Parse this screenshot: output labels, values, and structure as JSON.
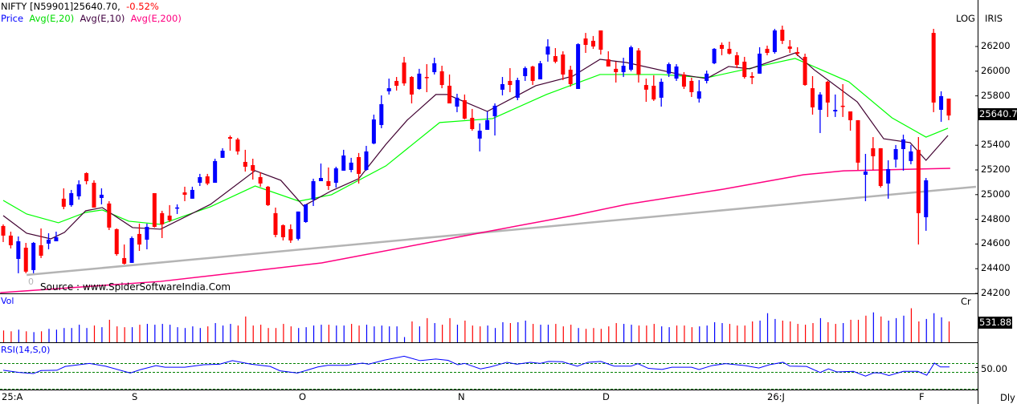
{
  "header": {
    "symbol": "NIFTY [N59901]25640.70,",
    "change": "-0.52%",
    "legend": {
      "price": "Price",
      "ema20": "Avg(E,20)",
      "ema10": "Avg(E,10)",
      "ema200": "Avg(E,200)"
    }
  },
  "top_right": {
    "log": "LOG",
    "iris": "IRIS"
  },
  "source": "Source : www.SpiderSoftwareIndia.Com",
  "trendline_label": "0",
  "colors": {
    "up": "#0000ff",
    "down": "#ff0000",
    "ema20": "#00ff00",
    "ema10": "#400030",
    "ema200": "#ff0080",
    "trendline": "#b4b4b4",
    "rsi": "#0000ff",
    "rsi_levels": "#008000"
  },
  "price_axis": {
    "ticks": [
      26200,
      26000,
      25800,
      25400,
      25200,
      25000,
      24800,
      24600,
      24400,
      24200
    ],
    "last_price_label": "25640.7",
    "range": [
      24200,
      26200
    ],
    "scale": "log"
  },
  "volume": {
    "label": "Vol",
    "unit": "Cr",
    "last_label": "531.88"
  },
  "rsi": {
    "label": "RSI(14,S,0)",
    "mid_label": "50.00"
  },
  "x_axis": {
    "labels": [
      "25:A",
      "S",
      "O",
      "N",
      "D",
      "26:J",
      "F"
    ],
    "period": "Dly"
  },
  "chart_data": {
    "type": "candlestick",
    "ohlc_fields": [
      "open",
      "high",
      "low",
      "close"
    ],
    "ohlc": [
      [
        24746,
        24759,
        24616,
        24668
      ],
      [
        24668,
        24700,
        24564,
        24590
      ],
      [
        24479,
        24661,
        24363,
        24622
      ],
      [
        24570,
        24609,
        24363,
        24376
      ],
      [
        24389,
        24616,
        24363,
        24609
      ],
      [
        24590,
        24726,
        24486,
        24505
      ],
      [
        24603,
        24687,
        24557,
        24635
      ],
      [
        24622,
        24700,
        24622,
        24655
      ],
      [
        24967,
        25051,
        24882,
        24902
      ],
      [
        24915,
        25038,
        24902,
        25012
      ],
      [
        24986,
        25116,
        24960,
        25083
      ],
      [
        25174,
        25181,
        25083,
        25109
      ],
      [
        25096,
        25116,
        24895,
        24895
      ],
      [
        24973,
        25051,
        24921,
        24999
      ],
      [
        24928,
        24947,
        24713,
        24733
      ],
      [
        24720,
        24726,
        24505,
        24518
      ],
      [
        24486,
        24596,
        24434,
        24440
      ],
      [
        24447,
        24661,
        24447,
        24648
      ],
      [
        24681,
        24765,
        24544,
        24596
      ],
      [
        24635,
        24765,
        24557,
        24739
      ],
      [
        25012,
        25012,
        24733,
        24739
      ],
      [
        24850,
        24869,
        24648,
        24759
      ],
      [
        24830,
        24915,
        24778,
        24791
      ],
      [
        24894,
        24921,
        24843,
        24896
      ],
      [
        25018,
        25064,
        24947,
        24999
      ],
      [
        24967,
        25064,
        24967,
        25038
      ],
      [
        25096,
        25168,
        25070,
        25142
      ],
      [
        25148,
        25168,
        25077,
        25090
      ],
      [
        25096,
        25291,
        25096,
        25272
      ],
      [
        25298,
        25376,
        25298,
        25356
      ],
      [
        25466,
        25479,
        25356,
        25453
      ],
      [
        25447,
        25460,
        25324,
        25350
      ],
      [
        25265,
        25363,
        25187,
        25226
      ],
      [
        25239,
        25291,
        25122,
        25194
      ],
      [
        25142,
        25181,
        25064,
        25090
      ],
      [
        25064,
        25070,
        24908,
        24915
      ],
      [
        24850,
        24895,
        24655,
        24674
      ],
      [
        24752,
        24759,
        24629,
        24655
      ],
      [
        24720,
        24759,
        24609,
        24629
      ],
      [
        24642,
        24863,
        24629,
        24863
      ],
      [
        24778,
        24921,
        24772,
        24921
      ],
      [
        24960,
        25129,
        24908,
        25109
      ],
      [
        25109,
        25252,
        25109,
        25135
      ],
      [
        25109,
        25220,
        25038,
        25070
      ],
      [
        25096,
        25226,
        25057,
        25213
      ],
      [
        25194,
        25363,
        25194,
        25317
      ],
      [
        25200,
        25298,
        25181,
        25259
      ],
      [
        25304,
        25337,
        25090,
        25168
      ],
      [
        25200,
        25395,
        25194,
        25350
      ],
      [
        25414,
        25648,
        25408,
        25609
      ],
      [
        25564,
        25804,
        25538,
        25733
      ],
      [
        25837,
        25940,
        25811,
        25862
      ],
      [
        25921,
        25953,
        25843,
        25882
      ],
      [
        26070,
        26116,
        25882,
        25901
      ],
      [
        25953,
        25960,
        25739,
        25811
      ],
      [
        25856,
        26019,
        25850,
        25980
      ],
      [
        25953,
        26057,
        25830,
        25947
      ],
      [
        25992,
        26109,
        25973,
        26064
      ],
      [
        25999,
        26044,
        25862,
        25888
      ],
      [
        25882,
        25973,
        25739,
        25739
      ],
      [
        25713,
        25817,
        25668,
        25785
      ],
      [
        25765,
        25811,
        25609,
        25616
      ],
      [
        25622,
        25694,
        25518,
        25531
      ],
      [
        25454,
        25577,
        25350,
        25518
      ],
      [
        25525,
        25674,
        25525,
        25603
      ],
      [
        25635,
        25739,
        25479,
        25720
      ],
      [
        25850,
        25953,
        25804,
        25895
      ],
      [
        25921,
        26025,
        25830,
        25888
      ],
      [
        25785,
        25947,
        25765,
        25928
      ],
      [
        25960,
        26038,
        25921,
        26025
      ],
      [
        26038,
        26044,
        25888,
        25921
      ],
      [
        25934,
        26083,
        25934,
        26064
      ],
      [
        26135,
        26259,
        26077,
        26200
      ],
      [
        26122,
        26187,
        26064,
        26077
      ],
      [
        26135,
        26161,
        25928,
        25973
      ],
      [
        26012,
        26044,
        25875,
        25895
      ],
      [
        25856,
        26226,
        25856,
        26219
      ],
      [
        26265,
        26310,
        26148,
        26213
      ],
      [
        26246,
        26285,
        26181,
        26200
      ],
      [
        26330,
        26330,
        26135,
        26174
      ],
      [
        26096,
        26161,
        26038,
        26038
      ],
      [
        26019,
        26077,
        25908,
        25992
      ],
      [
        25992,
        26109,
        25953,
        26044
      ],
      [
        26012,
        26207,
        25999,
        26194
      ],
      [
        26168,
        26187,
        25908,
        25973
      ],
      [
        25888,
        25940,
        25752,
        25850
      ],
      [
        25882,
        25966,
        25759,
        25771
      ],
      [
        25785,
        25940,
        25713,
        25914
      ],
      [
        25980,
        26070,
        25953,
        26057
      ],
      [
        25940,
        26057,
        25921,
        26038
      ],
      [
        25973,
        25992,
        25856,
        25875
      ],
      [
        25921,
        25947,
        25791,
        25830
      ],
      [
        25778,
        25928,
        25746,
        25837
      ],
      [
        25921,
        26005,
        25901,
        25980
      ],
      [
        26064,
        26187,
        26057,
        26181
      ],
      [
        26213,
        26232,
        26129,
        26181
      ],
      [
        26181,
        26239,
        26135,
        26142
      ],
      [
        26129,
        26155,
        26025,
        26051
      ],
      [
        26077,
        26116,
        25940,
        25953
      ],
      [
        25960,
        25992,
        25895,
        25947
      ],
      [
        25980,
        26194,
        25980,
        26142
      ],
      [
        26181,
        26207,
        26129,
        26148
      ],
      [
        26155,
        26343,
        26142,
        26330
      ],
      [
        26336,
        26369,
        26220,
        26246
      ],
      [
        26200,
        26252,
        26148,
        26181
      ],
      [
        26155,
        26194,
        26122,
        26142
      ],
      [
        26116,
        26142,
        25882,
        25888
      ],
      [
        25862,
        25960,
        25648,
        25707
      ],
      [
        25687,
        25830,
        25499,
        25811
      ],
      [
        25914,
        25921,
        25629,
        25746
      ],
      [
        25674,
        25811,
        25629,
        25687
      ],
      [
        25720,
        25895,
        25629,
        25713
      ],
      [
        25674,
        25674,
        25518,
        25603
      ],
      [
        25603,
        25603,
        25200,
        25259
      ],
      [
        25161,
        25330,
        24947,
        25187
      ],
      [
        25376,
        25466,
        25200,
        25311
      ],
      [
        25376,
        25376,
        25057,
        25070
      ],
      [
        25090,
        25278,
        24967,
        25207
      ],
      [
        25284,
        25402,
        25220,
        25369
      ],
      [
        25369,
        25486,
        25194,
        25447
      ],
      [
        25272,
        25402,
        25246,
        25350
      ],
      [
        25363,
        25466,
        24596,
        24850
      ],
      [
        24817,
        25135,
        24707,
        25116
      ],
      [
        26310,
        26343,
        25668,
        25746
      ],
      [
        25687,
        25837,
        25590,
        25798
      ],
      [
        25778,
        25778,
        25603,
        25640.7
      ]
    ],
    "volume": [
      301,
      280,
      322,
      280,
      259,
      280,
      343,
      322,
      364,
      364,
      448,
      364,
      427,
      385,
      574,
      406,
      385,
      385,
      448,
      469,
      448,
      469,
      448,
      385,
      364,
      406,
      364,
      406,
      490,
      427,
      469,
      427,
      658,
      427,
      448,
      364,
      364,
      469,
      406,
      364,
      385,
      427,
      448,
      448,
      427,
      427,
      469,
      427,
      448,
      406,
      427,
      406,
      406,
      133,
      532,
      406,
      616,
      490,
      448,
      616,
      448,
      553,
      427,
      406,
      427,
      364,
      511,
      490,
      511,
      553,
      469,
      448,
      448,
      469,
      406,
      448,
      364,
      343,
      364,
      343,
      406,
      490,
      469,
      448,
      427,
      427,
      469,
      406,
      385,
      427,
      427,
      385,
      406,
      427,
      511,
      490,
      469,
      427,
      427,
      532,
      553,
      742,
      595,
      553,
      532,
      469,
      448,
      490,
      616,
      511,
      469,
      490,
      574,
      574,
      679,
      763,
      658,
      553,
      616,
      679,
      868,
      532,
      595,
      742,
      637,
      531.88
    ],
    "ema20_points": [
      [
        0,
        24953
      ],
      [
        3.1,
        24843
      ],
      [
        7.3,
        24772
      ],
      [
        10.9,
        24856
      ],
      [
        13.1,
        24876
      ],
      [
        16.6,
        24785
      ],
      [
        20.8,
        24759
      ],
      [
        27.4,
        24902
      ],
      [
        33.3,
        25070
      ],
      [
        39.1,
        24947
      ],
      [
        43.4,
        24999
      ],
      [
        50.6,
        25233
      ],
      [
        57.7,
        25584
      ],
      [
        64.7,
        25616
      ],
      [
        71.8,
        25811
      ],
      [
        78.9,
        25973
      ],
      [
        87,
        25973
      ],
      [
        93,
        25947
      ],
      [
        104.7,
        26103
      ],
      [
        111.8,
        25914
      ],
      [
        117.5,
        25622
      ],
      [
        122,
        25466
      ],
      [
        124.9,
        25538
      ]
    ],
    "ema10_points": [
      [
        0,
        24830
      ],
      [
        3.1,
        24687
      ],
      [
        6.3,
        24642
      ],
      [
        8.1,
        24694
      ],
      [
        10.9,
        24869
      ],
      [
        13.1,
        24895
      ],
      [
        17.1,
        24733
      ],
      [
        20.8,
        24720
      ],
      [
        27.4,
        24921
      ],
      [
        33.3,
        25194
      ],
      [
        36.7,
        25116
      ],
      [
        39.7,
        24908
      ],
      [
        43.4,
        25031
      ],
      [
        47,
        25129
      ],
      [
        50.6,
        25408
      ],
      [
        53.4,
        25603
      ],
      [
        57.2,
        25811
      ],
      [
        58.7,
        25811
      ],
      [
        64,
        25674
      ],
      [
        70.4,
        25882
      ],
      [
        75.3,
        25960
      ],
      [
        78.9,
        26096
      ],
      [
        82.4,
        26070
      ],
      [
        89.5,
        25973
      ],
      [
        93,
        25940
      ],
      [
        95.9,
        26038
      ],
      [
        98.7,
        26019
      ],
      [
        104.7,
        26148
      ],
      [
        107.2,
        26012
      ],
      [
        112.9,
        25752
      ],
      [
        116.4,
        25453
      ],
      [
        119.9,
        25421
      ],
      [
        122,
        25278
      ],
      [
        124.9,
        25479
      ]
    ],
    "ema200_points": [
      [
        -0.4,
        24206
      ],
      [
        20.8,
        24297
      ],
      [
        42.1,
        24447
      ],
      [
        63.3,
        24693
      ],
      [
        75.3,
        24830
      ],
      [
        82.4,
        24921
      ],
      [
        95.2,
        25044
      ],
      [
        105.8,
        25161
      ],
      [
        111.1,
        25193
      ],
      [
        125.2,
        25213
      ]
    ],
    "trendline": [
      [
        3.1,
        24349
      ],
      [
        128.6,
        25064
      ]
    ],
    "rsi_points": [
      [
        0,
        43.8
      ],
      [
        2.1,
        38.8
      ],
      [
        4,
        36.3
      ],
      [
        5,
        43.1
      ],
      [
        7.1,
        43.8
      ],
      [
        8.2,
        52.5
      ],
      [
        11.4,
        59.4
      ],
      [
        13.5,
        53.1
      ],
      [
        16.8,
        37.5
      ],
      [
        18.1,
        45
      ],
      [
        20.2,
        54.4
      ],
      [
        21.4,
        50.6
      ],
      [
        24,
        50.6
      ],
      [
        26.5,
        56.3
      ],
      [
        28.6,
        57.5
      ],
      [
        30.3,
        65.6
      ],
      [
        32.8,
        57.5
      ],
      [
        35.3,
        52.5
      ],
      [
        36.6,
        42.5
      ],
      [
        38.9,
        37.5
      ],
      [
        41.6,
        51.3
      ],
      [
        42.9,
        55
      ],
      [
        45.4,
        55
      ],
      [
        47.5,
        60
      ],
      [
        48.3,
        57.5
      ],
      [
        50.4,
        66.9
      ],
      [
        53,
        75.6
      ],
      [
        55.1,
        65.6
      ],
      [
        57.2,
        69.4
      ],
      [
        58.8,
        66.3
      ],
      [
        60.1,
        56.3
      ],
      [
        61,
        59.4
      ],
      [
        63.1,
        46.9
      ],
      [
        64.4,
        51.3
      ],
      [
        66.6,
        61.9
      ],
      [
        67.9,
        57.5
      ],
      [
        69.7,
        61.9
      ],
      [
        71,
        59.4
      ],
      [
        72.1,
        63.8
      ],
      [
        73.9,
        63.1
      ],
      [
        75.9,
        53.1
      ],
      [
        77.3,
        61.9
      ],
      [
        79,
        63.8
      ],
      [
        80.8,
        53.1
      ],
      [
        83,
        53.1
      ],
      [
        83.9,
        58.8
      ],
      [
        85.3,
        48.1
      ],
      [
        87.1,
        45.6
      ],
      [
        88.4,
        50.6
      ],
      [
        91,
        50.6
      ],
      [
        92,
        45.6
      ],
      [
        93.7,
        54.4
      ],
      [
        95.5,
        58.8
      ],
      [
        98.1,
        54.4
      ],
      [
        99.9,
        48.8
      ],
      [
        101.3,
        56.3
      ],
      [
        103.1,
        61.9
      ],
      [
        104,
        53.1
      ],
      [
        106.2,
        52.5
      ],
      [
        108,
        38.8
      ],
      [
        109.1,
        46.9
      ],
      [
        110.2,
        40
      ],
      [
        112.4,
        41.3
      ],
      [
        114,
        30.6
      ],
      [
        115.1,
        38.1
      ],
      [
        116,
        37.5
      ],
      [
        117.1,
        31.9
      ],
      [
        119,
        41.3
      ],
      [
        120.9,
        41.3
      ],
      [
        122.1,
        32.5
      ],
      [
        123.1,
        60
      ],
      [
        123.9,
        51.3
      ],
      [
        125.1,
        51.3
      ]
    ]
  }
}
